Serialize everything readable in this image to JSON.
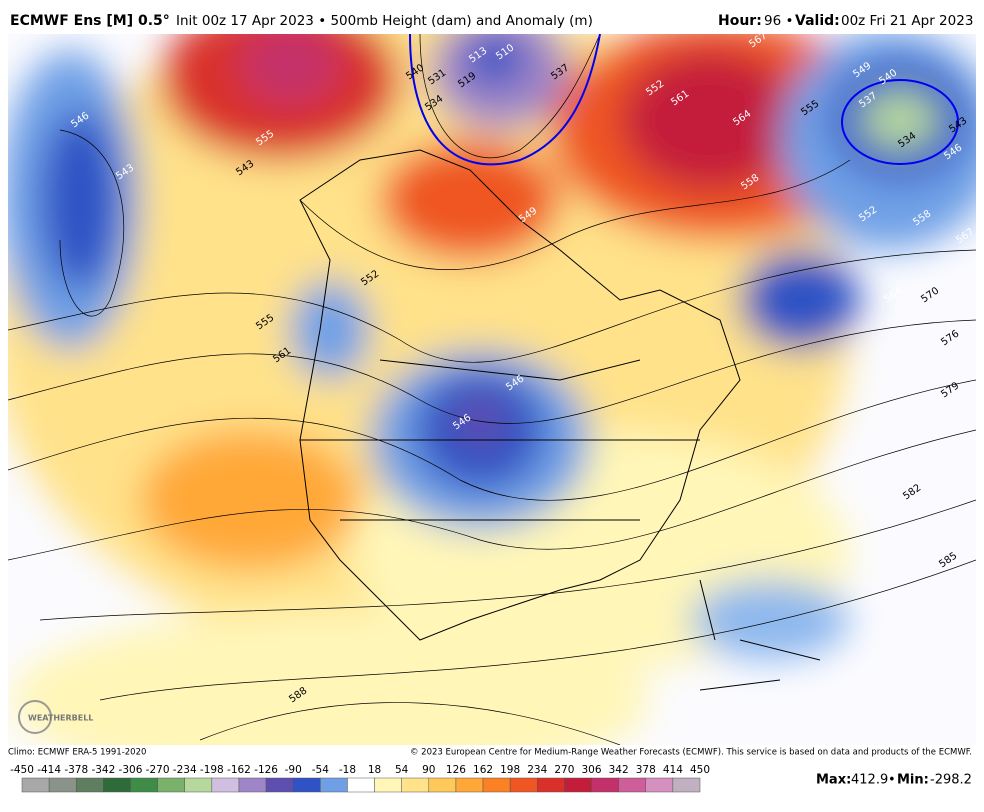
{
  "header": {
    "model": "ECMWF Ens [M] 0.5°",
    "description": "Init 00z 17 Apr 2023 • 500mb Height (dam) and Anomaly (m)",
    "hour_label": "Hour:",
    "hour": "96 •",
    "valid_label": "Valid:",
    "valid": "00z Fri 21 Apr 2023"
  },
  "map": {
    "contour_labels": [
      "546",
      "543",
      "555",
      "561",
      "552",
      "555",
      "546",
      "543",
      "540",
      "531",
      "534",
      "513",
      "510",
      "519",
      "537",
      "552",
      "561",
      "564",
      "567",
      "558",
      "555",
      "549",
      "540",
      "537",
      "534",
      "543",
      "546",
      "552",
      "558",
      "567",
      "564",
      "570",
      "576",
      "579",
      "582",
      "585",
      "588",
      "549",
      "546"
    ],
    "logo": "WEATHERBELL"
  },
  "footer": {
    "climo": "Climo: ECMWF ERA-5 1991-2020",
    "copyright": "© 2023 European Centre for Medium-Range Weather Forecasts (ECMWF). This service is based on data and products of the ECMWF.",
    "max_label": "Max:",
    "max": 412.9,
    "separator": "•",
    "min_label": "Min:",
    "min": -298.2
  },
  "colorbar": {
    "ticks": [
      -450,
      -414,
      -378,
      -342,
      -306,
      -270,
      -234,
      -198,
      -162,
      -126,
      -90,
      -54,
      -18,
      18,
      54,
      90,
      126,
      162,
      198,
      234,
      270,
      306,
      342,
      378,
      414,
      450
    ],
    "colors": [
      "#a8a8a8",
      "#8a938a",
      "#5f7d5f",
      "#2f6b3a",
      "#3f8c48",
      "#7ab26c",
      "#b6d89c",
      "#d0bfe0",
      "#9d85c8",
      "#5c4fb0",
      "#2f52c4",
      "#6fa0e6",
      "#ffffff",
      "#fff6b8",
      "#ffe28a",
      "#ffc95a",
      "#ffa838",
      "#fb8124",
      "#ef5622",
      "#d9302a",
      "#c41d3b",
      "#c4306a",
      "#cf5d9a",
      "#d690c0",
      "#c0b0c0"
    ]
  }
}
